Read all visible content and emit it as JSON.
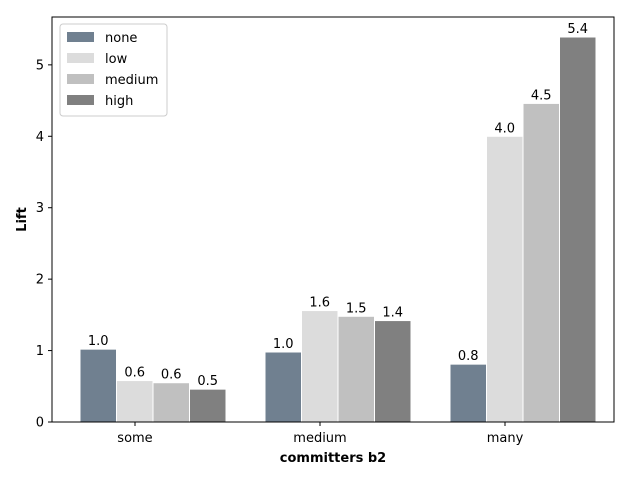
{
  "chart_data": {
    "type": "bar",
    "xlabel": "committers b2",
    "ylabel": "Lift",
    "categories": [
      "some",
      "medium",
      "many"
    ],
    "ylim": [
      0,
      5.67
    ],
    "yticks": [
      0,
      1,
      2,
      3,
      4,
      5
    ],
    "legend_position": "top-left",
    "grid": false,
    "series": [
      {
        "name": "none",
        "color": "#708090",
        "values": [
          1.02,
          0.98,
          0.81
        ],
        "labels": [
          "1.0",
          "1.0",
          "0.8"
        ]
      },
      {
        "name": "low",
        "color": "#dcdcdc",
        "values": [
          0.58,
          1.56,
          4.0
        ],
        "labels": [
          "0.6",
          "1.6",
          "4.0"
        ]
      },
      {
        "name": "medium",
        "color": "#c0c0c0",
        "values": [
          0.55,
          1.48,
          4.46
        ],
        "labels": [
          "0.6",
          "1.5",
          "4.5"
        ]
      },
      {
        "name": "high",
        "color": "#808080",
        "values": [
          0.46,
          1.42,
          5.39
        ],
        "labels": [
          "0.5",
          "1.4",
          "5.4"
        ]
      }
    ]
  }
}
